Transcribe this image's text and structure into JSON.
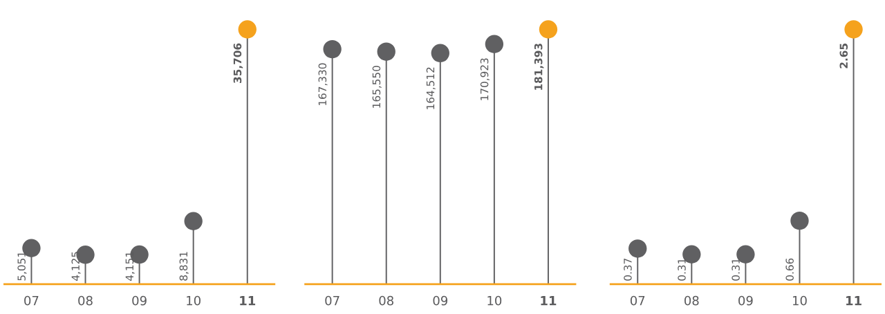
{
  "chart_data": [
    {
      "type": "lollipop",
      "categories": [
        "07",
        "08",
        "09",
        "10",
        "11"
      ],
      "values": [
        5051,
        4125,
        4151,
        8831,
        35706
      ],
      "value_labels": [
        "5,051",
        "4,125",
        "4,151",
        "8,831",
        "35,706"
      ],
      "colors": [
        "#606062",
        "#606062",
        "#606062",
        "#606062",
        "#f5a21d"
      ],
      "tick_labels": "x"
    },
    {
      "type": "lollipop",
      "categories": [
        "07",
        "08",
        "09",
        "10",
        "11"
      ],
      "values": [
        167330,
        165550,
        164512,
        170923,
        181393
      ],
      "value_labels": [
        "167,330",
        "165,550",
        "164,512",
        "170,923",
        "181,393"
      ],
      "colors": [
        "#606062",
        "#606062",
        "#606062",
        "#606062",
        "#f5a21d"
      ],
      "tick_labels": "x"
    },
    {
      "type": "lollipop",
      "categories": [
        "07",
        "08",
        "09",
        "10",
        "11"
      ],
      "values": [
        0.37,
        0.31,
        0.31,
        0.66,
        2.65
      ],
      "value_labels": [
        "0.37",
        "0.31",
        "0.31",
        "0.66",
        "2.65"
      ],
      "colors": [
        "#606062",
        "#606062",
        "#606062",
        "#606062",
        "#f5a21d"
      ],
      "tick_labels": "x"
    }
  ]
}
